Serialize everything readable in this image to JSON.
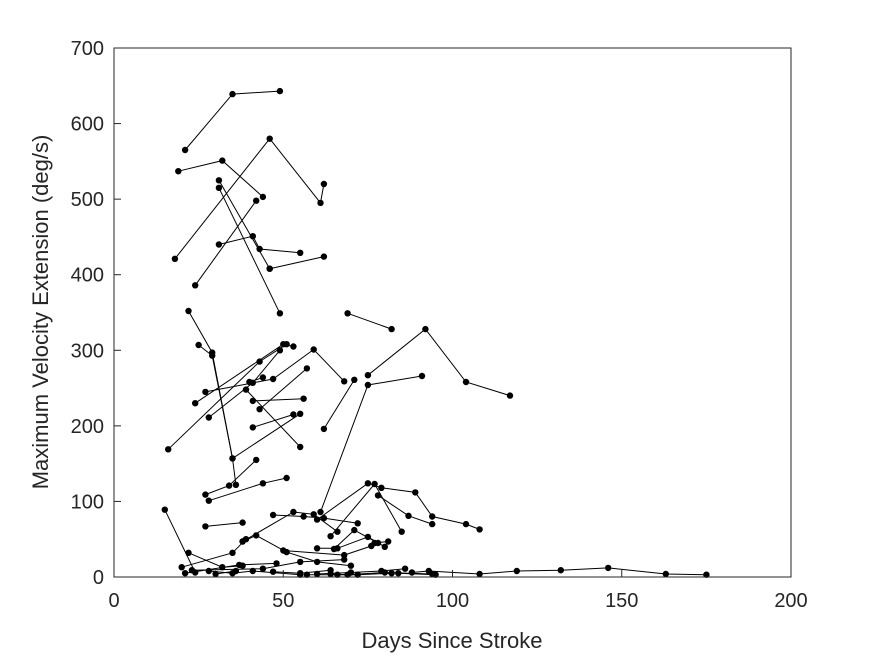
{
  "chart_data": {
    "type": "line",
    "xlabel": "Days Since Stroke",
    "ylabel": "Maximum Velocity Extension (deg/s)",
    "xlim": [
      0,
      200
    ],
    "ylim": [
      0,
      700
    ],
    "xticks": [
      "0",
      "50",
      "100",
      "150",
      "200"
    ],
    "yticks": [
      "0",
      "100",
      "200",
      "300",
      "400",
      "500",
      "600",
      "700"
    ],
    "grid": false,
    "legend": "none",
    "line_color": "#000000",
    "marker": "filled circle",
    "series": [
      {
        "x": [
          21,
          35,
          49
        ],
        "y": [
          565,
          639,
          643
        ]
      },
      {
        "x": [
          19,
          32,
          44
        ],
        "y": [
          537,
          551,
          503
        ]
      },
      {
        "x": [
          18,
          46,
          61,
          62
        ],
        "y": [
          421,
          580,
          495,
          520
        ]
      },
      {
        "x": [
          31,
          49
        ],
        "y": [
          515,
          349
        ]
      },
      {
        "x": [
          31,
          46
        ],
        "y": [
          525,
          408
        ]
      },
      {
        "x": [
          24,
          42
        ],
        "y": [
          386,
          498
        ]
      },
      {
        "x": [
          31,
          41,
          43,
          55
        ],
        "y": [
          440,
          451,
          434,
          429
        ]
      },
      {
        "x": [
          46,
          62
        ],
        "y": [
          408,
          424
        ]
      },
      {
        "x": [
          22,
          29,
          35,
          55
        ],
        "y": [
          352,
          297,
          157,
          216
        ]
      },
      {
        "x": [
          25,
          29,
          35,
          36
        ],
        "y": [
          307,
          293,
          157,
          122
        ]
      },
      {
        "x": [
          16,
          43,
          51
        ],
        "y": [
          169,
          285,
          308
        ]
      },
      {
        "x": [
          24,
          50,
          53
        ],
        "y": [
          230,
          308,
          305
        ]
      },
      {
        "x": [
          27,
          47,
          59,
          68
        ],
        "y": [
          245,
          262,
          301,
          259
        ]
      },
      {
        "x": [
          28,
          41,
          49
        ],
        "y": [
          211,
          257,
          300
        ]
      },
      {
        "x": [
          39,
          55
        ],
        "y": [
          248,
          172
        ]
      },
      {
        "x": [
          40,
          44
        ],
        "y": [
          258,
          264
        ]
      },
      {
        "x": [
          43,
          57
        ],
        "y": [
          222,
          276
        ]
      },
      {
        "x": [
          41,
          53
        ],
        "y": [
          198,
          215
        ]
      },
      {
        "x": [
          41,
          56
        ],
        "y": [
          233,
          236
        ]
      },
      {
        "x": [
          27,
          34,
          42
        ],
        "y": [
          109,
          121,
          155
        ]
      },
      {
        "x": [
          28,
          44,
          51
        ],
        "y": [
          101,
          124,
          131
        ]
      },
      {
        "x": [
          69,
          82
        ],
        "y": [
          349,
          328
        ]
      },
      {
        "x": [
          75,
          92,
          104,
          117
        ],
        "y": [
          267,
          328,
          258,
          240
        ]
      },
      {
        "x": [
          61,
          75,
          91
        ],
        "y": [
          86,
          254,
          266
        ]
      },
      {
        "x": [
          62,
          71
        ],
        "y": [
          196,
          261
        ]
      },
      {
        "x": [
          15,
          24
        ],
        "y": [
          89,
          6
        ]
      },
      {
        "x": [
          20,
          35,
          39
        ],
        "y": [
          13,
          32,
          50
        ]
      },
      {
        "x": [
          22,
          32,
          38
        ],
        "y": [
          32,
          13,
          15
        ]
      },
      {
        "x": [
          27,
          38
        ],
        "y": [
          67,
          72
        ]
      },
      {
        "x": [
          30,
          36
        ],
        "y": [
          4,
          8
        ]
      },
      {
        "x": [
          38,
          42,
          51,
          60,
          70
        ],
        "y": [
          47,
          55,
          33,
          20,
          15
        ]
      },
      {
        "x": [
          38,
          53,
          59,
          66
        ],
        "y": [
          47,
          86,
          83,
          60
        ]
      },
      {
        "x": [
          47,
          56,
          62,
          72
        ],
        "y": [
          82,
          80,
          78,
          71
        ]
      },
      {
        "x": [
          21,
          37,
          48
        ],
        "y": [
          5,
          16,
          18
        ]
      },
      {
        "x": [
          23,
          44,
          55,
          68
        ],
        "y": [
          9,
          11,
          20,
          23
        ]
      },
      {
        "x": [
          60,
          75,
          79,
          89,
          94,
          104,
          108
        ],
        "y": [
          76,
          124,
          118,
          112,
          80,
          70,
          63
        ]
      },
      {
        "x": [
          64,
          77,
          85
        ],
        "y": [
          54,
          123,
          60
        ]
      },
      {
        "x": [
          78,
          87,
          94
        ],
        "y": [
          108,
          81,
          70
        ]
      },
      {
        "x": [
          60,
          66,
          75,
          80
        ],
        "y": [
          38,
          38,
          53,
          40
        ]
      },
      {
        "x": [
          65,
          71,
          78
        ],
        "y": [
          37,
          62,
          45
        ]
      },
      {
        "x": [
          50,
          68,
          76,
          77,
          81
        ],
        "y": [
          35,
          29,
          41,
          45,
          47
        ]
      },
      {
        "x": [
          60,
          70,
          79,
          86
        ],
        "y": [
          4,
          6,
          8,
          11
        ]
      },
      {
        "x": [
          57,
          66,
          72,
          82
        ],
        "y": [
          3,
          3,
          3,
          5
        ]
      },
      {
        "x": [
          88,
          93,
          108,
          119,
          132,
          146,
          163,
          175
        ],
        "y": [
          6,
          8,
          4,
          8,
          9,
          12,
          4,
          3
        ]
      },
      {
        "x": [
          64,
          69,
          80,
          94
        ],
        "y": [
          4,
          3,
          6,
          4
        ]
      },
      {
        "x": [
          84,
          95
        ],
        "y": [
          5,
          3
        ]
      },
      {
        "x": [
          28,
          35,
          41,
          55
        ],
        "y": [
          8,
          5,
          8,
          3
        ]
      },
      {
        "x": [
          47,
          55,
          64
        ],
        "y": [
          7,
          5,
          9
        ]
      }
    ]
  }
}
